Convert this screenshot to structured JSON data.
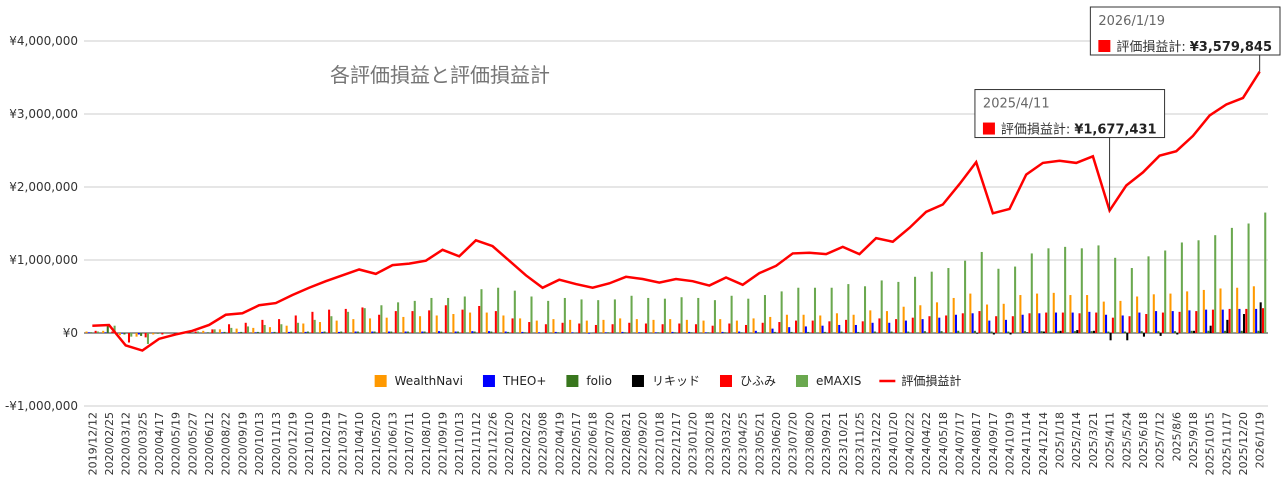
{
  "chart_data": {
    "type": "bar",
    "title": "各評価損益と評価損益計",
    "categories": [
      "2019/12/12",
      "2020/02/25",
      "2020/03/12",
      "2020/03/25",
      "2020/04/17",
      "2020/05/19",
      "2020/05/27",
      "2020/06/12",
      "2020/08/22",
      "2020/09/19",
      "2020/10/13",
      "2020/11/13",
      "2020/12/19",
      "2021/01/10",
      "2021/02/19",
      "2021/03/17",
      "2021/04/10",
      "2021/05/20",
      "2021/06/13",
      "2021/07/11",
      "2021/08/10",
      "2021/09/19",
      "2021/10/13",
      "2021/11/12",
      "2021/12/26",
      "2022/01/20",
      "2022/02/22",
      "2022/03/08",
      "2022/04/19",
      "2022/05/17",
      "2022/06/18",
      "2022/07/20",
      "2022/08/21",
      "2022/09/20",
      "2022/10/18",
      "2022/12/17",
      "2023/01/20",
      "2023/02/18",
      "2023/03/22",
      "2023/04/25",
      "2023/05/21",
      "2023/06/20",
      "2023/07/20",
      "2023/08/20",
      "2023/09/21",
      "2023/10/21",
      "2023/11/25",
      "2023/12/22",
      "2024/01/20",
      "2024/02/22",
      "2024/04/22",
      "2024/05/18",
      "2024/07/17",
      "2024/08/17",
      "2024/09/17",
      "2024/10/19",
      "2024/11/14",
      "2024/12/14",
      "2025/1/18",
      "2025/2/14",
      "2025/3/21",
      "2025/4/11",
      "2025/5/24",
      "2025/6/18",
      "2025/7/12",
      "2025/8/6",
      "2025/9/18",
      "2025/10/15",
      "2025/11/17",
      "2025/12/20",
      "2026/1/19"
    ],
    "series": [
      {
        "name": "WealthNavi",
        "color": "#ff9900",
        "type": "bar",
        "values": [
          20000,
          30000,
          -30000,
          -50000,
          -20000,
          0,
          10000,
          30000,
          50000,
          60000,
          70000,
          80000,
          100000,
          130000,
          150000,
          170000,
          190000,
          200000,
          210000,
          220000,
          230000,
          240000,
          260000,
          280000,
          280000,
          240000,
          200000,
          170000,
          190000,
          180000,
          170000,
          180000,
          200000,
          190000,
          180000,
          190000,
          180000,
          170000,
          190000,
          170000,
          200000,
          220000,
          250000,
          250000,
          240000,
          270000,
          250000,
          310000,
          300000,
          360000,
          380000,
          420000,
          480000,
          540000,
          390000,
          400000,
          520000,
          540000,
          550000,
          520000,
          520000,
          430000,
          440000,
          500000,
          530000,
          540000,
          570000,
          590000,
          610000,
          620000,
          640000
        ]
      },
      {
        "name": "THEO+",
        "color": "#0000ff",
        "type": "bar",
        "values": [
          10000,
          10000,
          -10000,
          -20000,
          0,
          0,
          0,
          5000,
          10000,
          10000,
          10000,
          10000,
          15000,
          15000,
          15000,
          15000,
          20000,
          20000,
          20000,
          20000,
          20000,
          25000,
          20000,
          25000,
          25000,
          20000,
          15000,
          10000,
          15000,
          10000,
          -10000,
          10000,
          15000,
          10000,
          10000,
          15000,
          15000,
          10000,
          15000,
          20000,
          30000,
          60000,
          80000,
          90000,
          100000,
          110000,
          110000,
          140000,
          140000,
          170000,
          190000,
          210000,
          250000,
          270000,
          170000,
          180000,
          250000,
          270000,
          280000,
          280000,
          290000,
          250000,
          240000,
          280000,
          300000,
          300000,
          310000,
          320000,
          320000,
          330000,
          330000
        ]
      },
      {
        "name": "folio",
        "color": "#38761d",
        "type": "bar",
        "values": [
          10000,
          100000,
          -20000,
          -40000,
          -10000,
          0,
          5000,
          10000,
          15000,
          15000,
          15000,
          15000,
          20000,
          20000,
          20000,
          20000,
          20000,
          20000,
          20000,
          20000,
          20000,
          20000,
          20000,
          20000,
          20000,
          15000,
          10000,
          5000,
          10000,
          5000,
          5000,
          10000,
          10000,
          10000,
          10000,
          10000,
          10000,
          10000,
          10000,
          10000,
          10000,
          15000,
          15000,
          15000,
          15000,
          20000,
          15000,
          20000,
          20000,
          20000,
          25000,
          25000,
          30000,
          30000,
          20000,
          20000,
          25000,
          25000,
          25000,
          25000,
          25000,
          20000,
          20000,
          25000,
          25000,
          25000,
          30000,
          30000,
          30000,
          30000,
          30000
        ]
      },
      {
        "name": "リキッド",
        "color": "#000000",
        "type": "bar",
        "values": [
          0,
          0,
          0,
          0,
          0,
          0,
          0,
          0,
          0,
          0,
          0,
          0,
          0,
          0,
          0,
          0,
          0,
          0,
          0,
          0,
          0,
          0,
          0,
          0,
          0,
          0,
          0,
          0,
          0,
          0,
          0,
          0,
          0,
          0,
          0,
          0,
          0,
          0,
          0,
          0,
          0,
          0,
          0,
          0,
          0,
          0,
          0,
          0,
          0,
          0,
          0,
          0,
          0,
          -10000,
          -20000,
          -20000,
          10000,
          20000,
          30000,
          40000,
          30000,
          -100000,
          -100000,
          -50000,
          -40000,
          -20000,
          30000,
          100000,
          180000,
          260000,
          420000
        ]
      },
      {
        "name": "ひふみ",
        "color": "#ff0000",
        "type": "bar",
        "values": [
          30000,
          20000,
          -130000,
          -60000,
          -20000,
          0,
          20000,
          50000,
          120000,
          140000,
          180000,
          190000,
          240000,
          290000,
          320000,
          330000,
          350000,
          250000,
          300000,
          300000,
          310000,
          380000,
          320000,
          370000,
          300000,
          200000,
          150000,
          120000,
          140000,
          130000,
          110000,
          120000,
          140000,
          130000,
          120000,
          130000,
          120000,
          100000,
          130000,
          110000,
          140000,
          150000,
          170000,
          170000,
          160000,
          180000,
          160000,
          200000,
          190000,
          210000,
          230000,
          240000,
          270000,
          300000,
          230000,
          230000,
          270000,
          280000,
          280000,
          270000,
          280000,
          210000,
          230000,
          260000,
          280000,
          290000,
          300000,
          320000,
          330000,
          330000,
          340000
        ]
      },
      {
        "name": "eMAXIS",
        "color": "#6aa84f",
        "type": "bar",
        "values": [
          20000,
          100000,
          -50000,
          -150000,
          -10000,
          0,
          20000,
          50000,
          70000,
          90000,
          110000,
          120000,
          140000,
          180000,
          230000,
          290000,
          340000,
          380000,
          420000,
          440000,
          480000,
          480000,
          500000,
          600000,
          620000,
          580000,
          500000,
          440000,
          480000,
          460000,
          450000,
          460000,
          510000,
          480000,
          470000,
          490000,
          480000,
          450000,
          510000,
          470000,
          520000,
          570000,
          620000,
          620000,
          620000,
          670000,
          640000,
          720000,
          700000,
          770000,
          840000,
          890000,
          990000,
          1110000,
          880000,
          910000,
          1090000,
          1160000,
          1180000,
          1160000,
          1200000,
          1030000,
          890000,
          1050000,
          1130000,
          1240000,
          1270000,
          1340000,
          1440000,
          1500000,
          1650000
        ]
      },
      {
        "name": "評価損益計",
        "color": "#ff0000",
        "type": "line",
        "values": [
          100000,
          110000,
          -170000,
          -240000,
          -80000,
          -20000,
          30000,
          110000,
          250000,
          270000,
          380000,
          410000,
          520000,
          620000,
          710000,
          790000,
          870000,
          810000,
          930000,
          950000,
          990000,
          1140000,
          1050000,
          1270000,
          1190000,
          990000,
          790000,
          620000,
          730000,
          670000,
          620000,
          680000,
          770000,
          740000,
          690000,
          740000,
          710000,
          650000,
          760000,
          660000,
          820000,
          920000,
          1090000,
          1100000,
          1080000,
          1180000,
          1080000,
          1300000,
          1250000,
          1440000,
          1660000,
          1760000,
          2040000,
          2340000,
          1640000,
          1700000,
          2170000,
          2330000,
          2360000,
          2330000,
          2420000,
          1677431,
          2020000,
          2200000,
          2430000,
          2490000,
          2700000,
          2980000,
          3130000,
          3220000,
          3579845
        ]
      }
    ],
    "ylim": [
      -1000000,
      4000000
    ],
    "yticks": [
      {
        "value": -1000000,
        "label": "-¥1,000,000"
      },
      {
        "value": 0,
        "label": "¥0"
      },
      {
        "value": 1000000,
        "label": "¥1,000,000"
      },
      {
        "value": 2000000,
        "label": "¥2,000,000"
      },
      {
        "value": 3000000,
        "label": "¥3,000,000"
      },
      {
        "value": 4000000,
        "label": "¥4,000,000"
      }
    ],
    "grid": true,
    "legend": "bottom",
    "tooltips": [
      {
        "category": "2025/4/11",
        "series_label": "評価損益計:",
        "value": 1677431,
        "label": "¥1,677,431"
      },
      {
        "category": "2026/1/19",
        "series_label": "評価損益計:",
        "value": 3579845,
        "label": "¥3,579,845"
      }
    ]
  }
}
